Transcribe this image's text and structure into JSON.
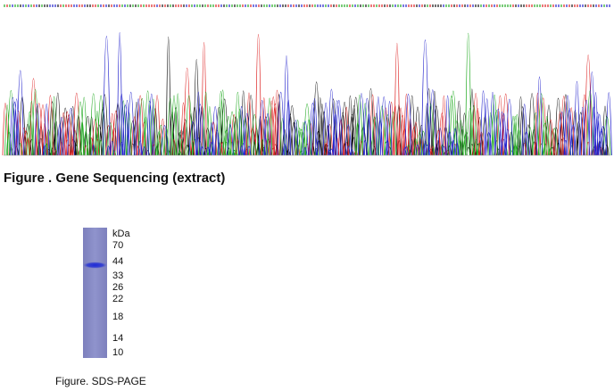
{
  "figure1": {
    "caption": "Figure . Gene Sequencing (extract)"
  },
  "figure2": {
    "unit_label": "kDa",
    "markers": [
      70,
      44,
      33,
      26,
      22,
      18,
      14,
      10
    ],
    "caption": "Figure. SDS-PAGE"
  }
}
